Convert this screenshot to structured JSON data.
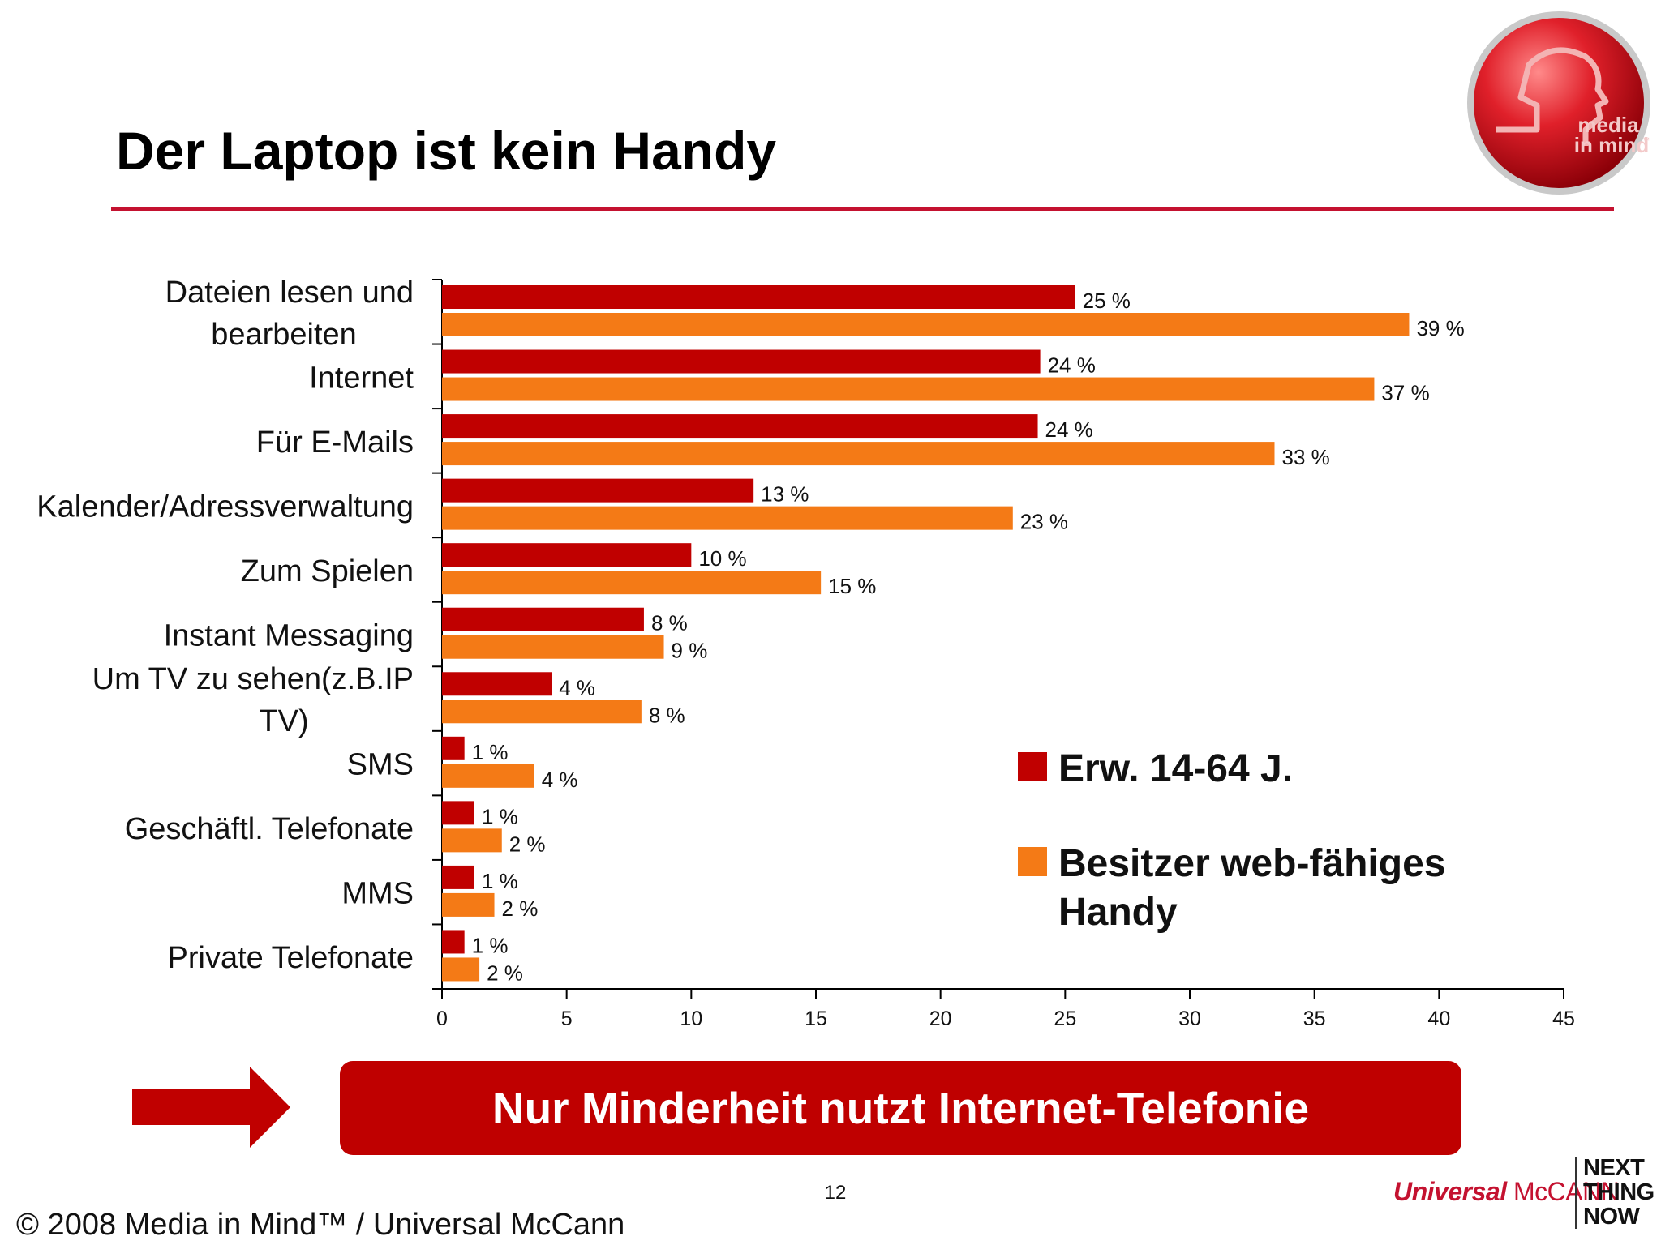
{
  "header": {
    "title": "Der Laptop ist kein Handy",
    "logo_text_line1": "media",
    "logo_text_line2": "in mind",
    "logo_tm": "™"
  },
  "chart_data": {
    "type": "bar",
    "orientation": "horizontal",
    "categories": [
      [
        "Dateien lesen und",
        "bearbeiten"
      ],
      [
        "Internet"
      ],
      [
        "Für E-Mails"
      ],
      [
        "Kalender/Adressverwaltung"
      ],
      [
        "Zum Spielen"
      ],
      [
        "Instant Messaging"
      ],
      [
        "Um TV zu sehen(z.B.IP",
        "TV)"
      ],
      [
        "SMS"
      ],
      [
        "Geschäftl. Telefonate"
      ],
      [
        "MMS"
      ],
      [
        "Private Telefonate"
      ]
    ],
    "series": [
      {
        "name": "Erw. 14-64 J.",
        "color": "#c00000",
        "values": [
          25.4,
          24.0,
          23.9,
          12.5,
          10.0,
          8.1,
          4.4,
          0.9,
          1.3,
          1.3,
          0.9
        ],
        "labels": [
          "25 %",
          "24 %",
          "24 %",
          "13 %",
          "10 %",
          "8 %",
          "4 %",
          "1 %",
          "1 %",
          "1 %",
          "1 %"
        ]
      },
      {
        "name": [
          "Besitzer web-fähiges",
          "Handy"
        ],
        "color": "#f47a16",
        "values": [
          38.8,
          37.4,
          33.4,
          22.9,
          15.2,
          8.9,
          8.0,
          3.7,
          2.4,
          2.1,
          1.5
        ],
        "labels": [
          "39 %",
          "37 %",
          "33 %",
          "23 %",
          "15 %",
          "9 %",
          "8 %",
          "4 %",
          "2 %",
          "2 %",
          "2 %"
        ]
      }
    ],
    "x_ticks": [
      "0",
      "5",
      "10",
      "15",
      "20",
      "25",
      "30",
      "35",
      "40",
      "45"
    ],
    "xlim": [
      0,
      45
    ],
    "grid": false,
    "legend_position": "bottom-right"
  },
  "banner": {
    "text": "Nur Minderheit nutzt Internet-Telefonie"
  },
  "footer": {
    "page_number": "12",
    "copyright": "© 2008 Media in Mind™ / Universal McCann",
    "brand_part1": "Universal",
    "brand_part2": " McCANN",
    "tagline": [
      "NEXT",
      "THING",
      "NOW"
    ]
  }
}
